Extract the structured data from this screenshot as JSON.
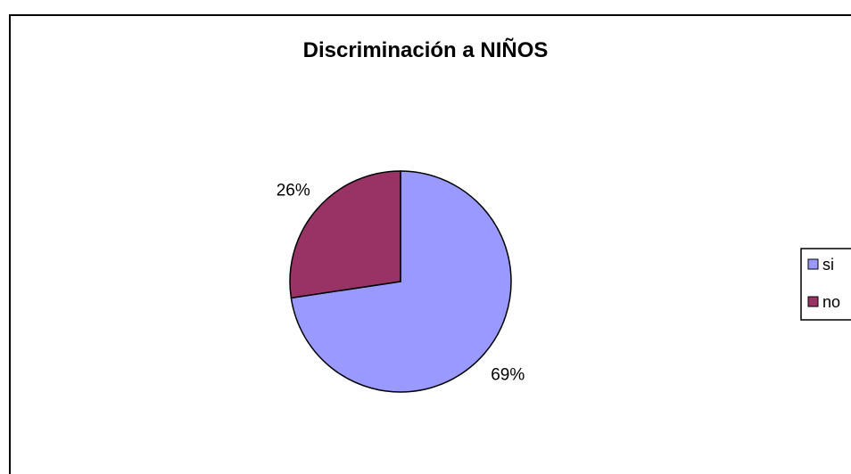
{
  "chart_data": {
    "type": "pie",
    "title": "Discriminación a NIÑOS",
    "categories": [
      "si",
      "no"
    ],
    "values": [
      69,
      26
    ],
    "labels": [
      "69%",
      "26%"
    ],
    "colors": [
      "#9999ff",
      "#993366"
    ],
    "legend_position": "right",
    "legend": [
      "si",
      "no"
    ]
  }
}
